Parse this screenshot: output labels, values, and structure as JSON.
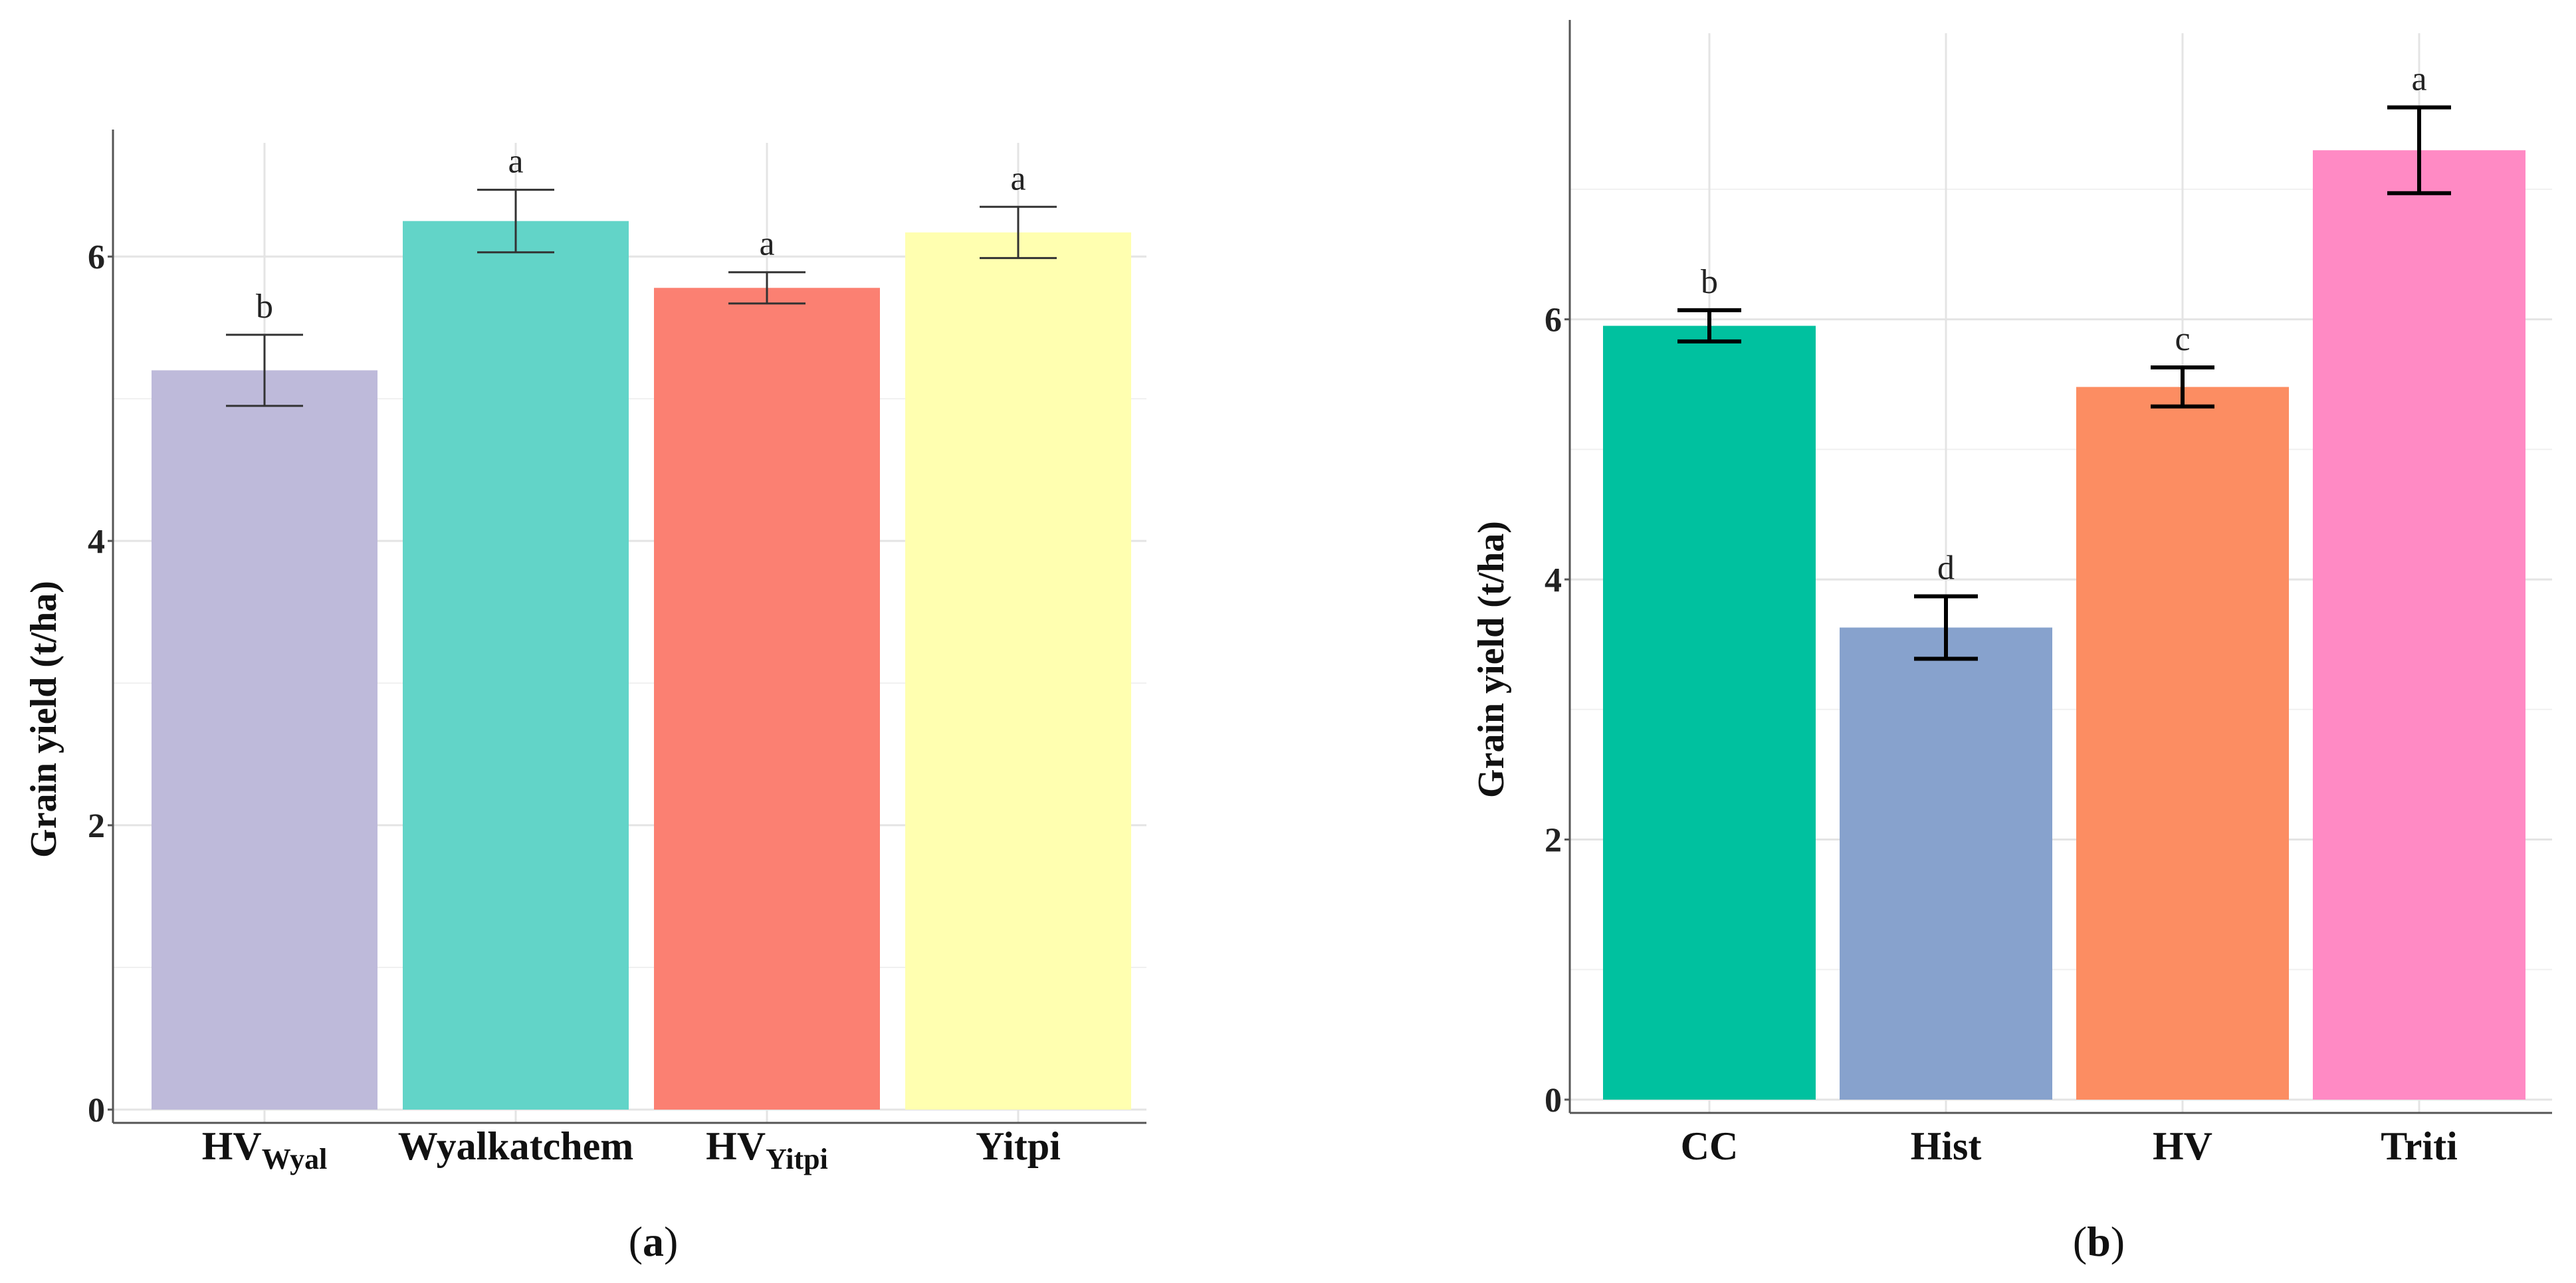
{
  "chart_data": [
    {
      "type": "bar",
      "panel_label": "a",
      "ylabel": "Grain yield (t/ha)",
      "ylim": [
        0,
        6.8
      ],
      "yticks": [
        0,
        2,
        4,
        6
      ],
      "grid": true,
      "categories": [
        {
          "main": "HV",
          "sub": "Wyal"
        },
        {
          "main": "Wyalkatchem",
          "sub": ""
        },
        {
          "main": "HV",
          "sub": "Yitpi"
        },
        {
          "main": "Yitpi",
          "sub": ""
        }
      ],
      "values": [
        5.2,
        6.25,
        5.78,
        6.17
      ],
      "errors": [
        0.25,
        0.22,
        0.11,
        0.18
      ],
      "letters": [
        "b",
        "a",
        "a",
        "a"
      ],
      "colors": [
        "#bebada",
        "#62d4c8",
        "#fb8072",
        "#ffffb0"
      ],
      "error_cap": "thin"
    },
    {
      "type": "bar",
      "panel_label": "b",
      "ylabel": "Grain yield (t/ha)",
      "ylim": [
        0,
        8.2
      ],
      "yticks": [
        0,
        2,
        4,
        6
      ],
      "grid": true,
      "categories": [
        {
          "main": "CC",
          "sub": ""
        },
        {
          "main": "Hist",
          "sub": ""
        },
        {
          "main": "HV",
          "sub": ""
        },
        {
          "main": "Triti",
          "sub": ""
        }
      ],
      "values": [
        5.95,
        3.63,
        5.48,
        7.3
      ],
      "errors": [
        0.12,
        0.24,
        0.15,
        0.33
      ],
      "letters": [
        "b",
        "d",
        "c",
        "a"
      ],
      "colors": [
        "#00c19f",
        "#87a2cd",
        "#fc8d62",
        "#ff8ac4"
      ],
      "error_cap": "thick"
    }
  ]
}
